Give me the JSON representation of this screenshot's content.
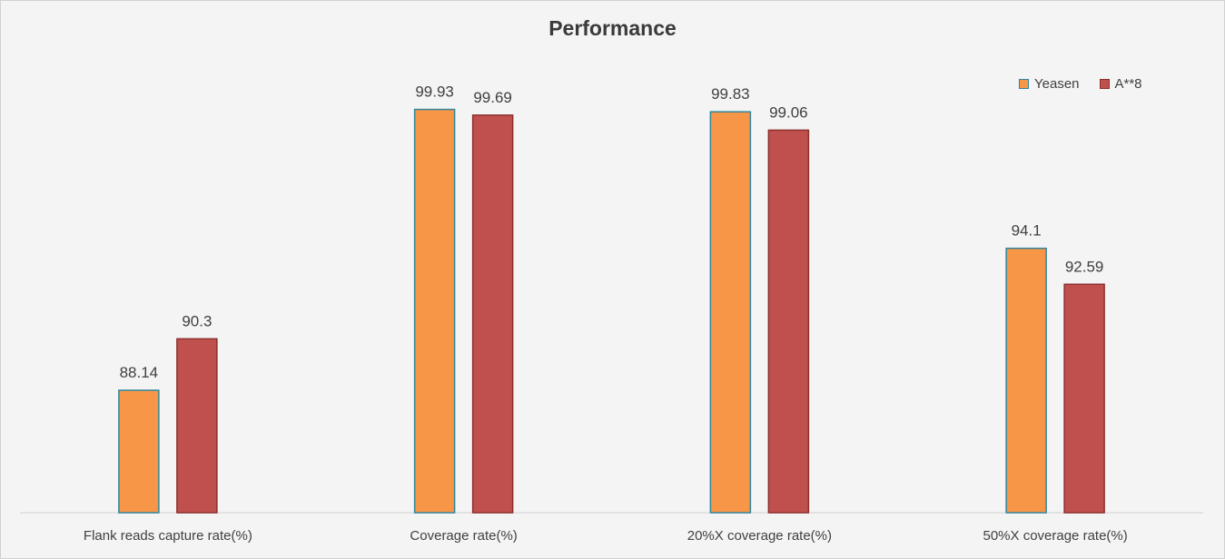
{
  "chart_data": {
    "type": "bar",
    "title": "Performance",
    "categories": [
      "Flank reads capture rate(%)",
      "Coverage rate(%)",
      "20%X coverage rate(%)",
      "50%X coverage rate(%)"
    ],
    "series": [
      {
        "name": "Yeasen",
        "values": [
          88.14,
          99.93,
          99.83,
          94.1
        ],
        "labels": [
          "88.14",
          "99.93",
          "99.83",
          "94.1"
        ],
        "color": "#f79646",
        "stroke": "#31859c"
      },
      {
        "name": "A**8",
        "values": [
          90.3,
          99.69,
          99.06,
          92.59
        ],
        "labels": [
          "90.3",
          "99.69",
          "99.06",
          "92.59"
        ],
        "color": "#c0504d",
        "stroke": "#8c2f2c"
      }
    ],
    "ylim": [
      83,
      103
    ],
    "grid": false,
    "legend": "top-right"
  }
}
